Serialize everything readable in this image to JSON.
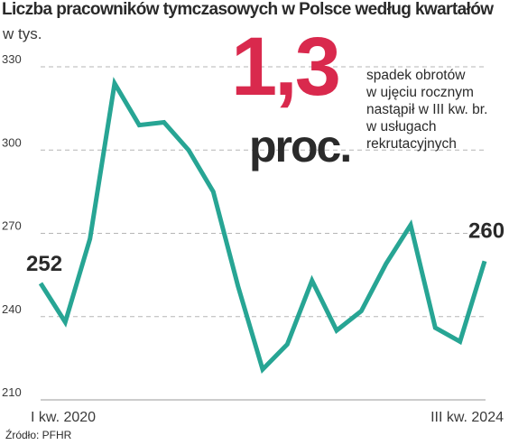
{
  "header": {
    "title": "Liczba pracowników tymczasowych w Polsce według kwartałów",
    "unit": "w tys."
  },
  "highlight": {
    "value": "1,3",
    "unit": "proc.",
    "note_lines": [
      "spadek obrotów",
      "w ujęciu rocznym",
      "nastąpił w III kw. br.",
      "w usługach",
      "rekrutacyjnych"
    ]
  },
  "source": "Źródło: PFHR",
  "colors": {
    "line": "#27a594",
    "highlight": "#d9294d",
    "grid": "#b5b5b5"
  },
  "chart_data": {
    "type": "line",
    "title": "Liczba pracowników tymczasowych w Polsce według kwartałów",
    "ylabel": "w tys.",
    "ylim": [
      210,
      330
    ],
    "yticks": [
      210,
      240,
      270,
      300,
      330
    ],
    "grid": true,
    "x_first_label": "I kw. 2020",
    "x_last_label": "III kw. 2024",
    "series": [
      {
        "values": [
          252,
          238,
          268,
          324,
          309,
          310,
          300,
          285,
          251,
          221,
          230,
          253,
          235,
          242,
          259,
          273,
          236,
          231,
          260
        ]
      }
    ],
    "data_labels": [
      {
        "index": 0,
        "text": "252"
      },
      {
        "index": 18,
        "text": "260"
      }
    ]
  }
}
